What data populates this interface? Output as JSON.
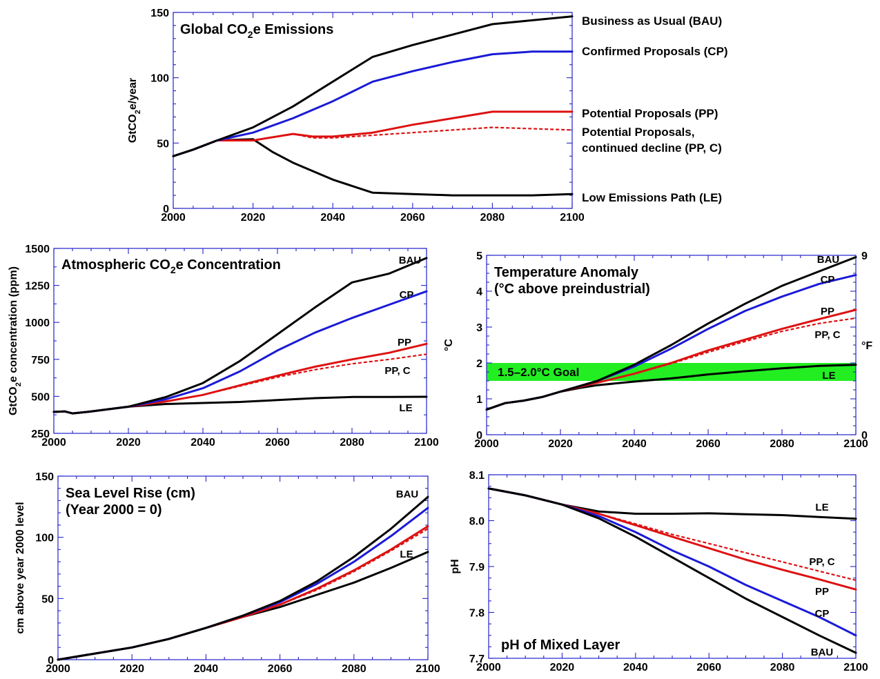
{
  "colors": {
    "bau": "#000000",
    "cp": "#1a1ad6",
    "pp": "#dd1111",
    "ppc": "#dd1111",
    "le": "#000000",
    "frame": "#2222cc",
    "goal_band": "#22ee22"
  },
  "chart_data": [
    {
      "id": "emissions",
      "type": "line",
      "title": "Global CO",
      "title_sub": "2",
      "title_rest": "e Emissions",
      "ylabel": "GtCO",
      "ylabel_sub": "2",
      "ylabel_rest": "e/year",
      "xlim": [
        2000,
        2100
      ],
      "ylim": [
        0,
        150
      ],
      "xticks": [
        "2000",
        "2020",
        "2040",
        "2060",
        "2080",
        "2100"
      ],
      "yticks": [
        "0",
        "50",
        "100",
        "150"
      ],
      "series": [
        {
          "key": "bau",
          "name": "Business as Usual (BAU)",
          "dash": false,
          "x": [
            2000,
            2005,
            2011,
            2020,
            2030,
            2040,
            2050,
            2060,
            2070,
            2080,
            2090,
            2100
          ],
          "y": [
            40,
            45,
            52,
            62,
            78,
            97,
            116,
            125,
            133,
            141,
            144,
            147
          ]
        },
        {
          "key": "cp",
          "name": "Confirmed Proposals (CP)",
          "dash": false,
          "x": [
            2000,
            2005,
            2011,
            2020,
            2030,
            2040,
            2050,
            2060,
            2070,
            2080,
            2090,
            2100
          ],
          "y": [
            40,
            45,
            52,
            58,
            69,
            82,
            97,
            105,
            112,
            118,
            120,
            120
          ]
        },
        {
          "key": "pp",
          "name": "Potential Proposals (PP)",
          "dash": false,
          "x": [
            2000,
            2005,
            2011,
            2020,
            2030,
            2035,
            2040,
            2050,
            2060,
            2070,
            2080,
            2090,
            2100
          ],
          "y": [
            40,
            45,
            52,
            52,
            57,
            55,
            55,
            58,
            64,
            69,
            74,
            74,
            74
          ]
        },
        {
          "key": "ppc",
          "name": "Potential Proposals,",
          "name2": "continued decline (PP, C)",
          "dash": true,
          "x": [
            2000,
            2005,
            2011,
            2020,
            2030,
            2035,
            2040,
            2050,
            2060,
            2070,
            2080,
            2090,
            2100
          ],
          "y": [
            40,
            45,
            52,
            52,
            57,
            54,
            54,
            56,
            58,
            60,
            62,
            61,
            60
          ]
        },
        {
          "key": "le",
          "name": "Low Emissions Path (LE)",
          "dash": false,
          "x": [
            2000,
            2005,
            2011,
            2020,
            2025,
            2030,
            2040,
            2050,
            2060,
            2070,
            2080,
            2090,
            2100
          ],
          "y": [
            40,
            45,
            52,
            53,
            43,
            35,
            22,
            12,
            11,
            10,
            10,
            10,
            11
          ]
        }
      ]
    },
    {
      "id": "concentration",
      "type": "line",
      "title": "Atmospheric CO",
      "title_sub": "2",
      "title_rest": "e Concentration",
      "ylabel": "GtCO",
      "ylabel_sub": "2",
      "ylabel_rest": "e concentration (ppm)",
      "xlim": [
        2000,
        2100
      ],
      "ylim": [
        250,
        1500
      ],
      "xticks": [
        "2000",
        "2020",
        "2040",
        "2060",
        "2080",
        "2100"
      ],
      "yticks": [
        "250",
        "500",
        "750",
        "1000",
        "1250",
        "1500"
      ],
      "series": [
        {
          "key": "bau",
          "name": "BAU",
          "dash": false,
          "x": [
            2000,
            2003,
            2005,
            2010,
            2020,
            2030,
            2040,
            2050,
            2060,
            2070,
            2080,
            2090,
            2100
          ],
          "y": [
            395,
            398,
            385,
            398,
            430,
            495,
            590,
            740,
            920,
            1100,
            1270,
            1330,
            1435
          ]
        },
        {
          "key": "cp",
          "name": "CP",
          "dash": false,
          "x": [
            2000,
            2003,
            2005,
            2010,
            2020,
            2030,
            2040,
            2050,
            2060,
            2070,
            2080,
            2090,
            2100
          ],
          "y": [
            395,
            398,
            385,
            398,
            430,
            480,
            555,
            670,
            810,
            930,
            1030,
            1120,
            1210
          ]
        },
        {
          "key": "pp",
          "name": "PP",
          "dash": false,
          "x": [
            2000,
            2003,
            2005,
            2010,
            2020,
            2030,
            2040,
            2050,
            2060,
            2070,
            2080,
            2090,
            2100
          ],
          "y": [
            395,
            398,
            385,
            398,
            430,
            465,
            510,
            575,
            640,
            700,
            750,
            795,
            855
          ]
        },
        {
          "key": "ppc",
          "name": "PP, C",
          "dash": true,
          "x": [
            2000,
            2003,
            2005,
            2010,
            2020,
            2030,
            2040,
            2050,
            2060,
            2070,
            2080,
            2090,
            2100
          ],
          "y": [
            395,
            398,
            385,
            398,
            430,
            465,
            510,
            570,
            630,
            680,
            720,
            750,
            785
          ]
        },
        {
          "key": "le",
          "name": "LE",
          "dash": false,
          "x": [
            2000,
            2003,
            2005,
            2010,
            2020,
            2030,
            2040,
            2050,
            2060,
            2070,
            2080,
            2090,
            2100
          ],
          "y": [
            395,
            398,
            385,
            398,
            430,
            448,
            455,
            462,
            475,
            488,
            496,
            496,
            497
          ]
        }
      ]
    },
    {
      "id": "temperature",
      "type": "line",
      "title": "Temperature Anomaly",
      "title2": "(°C above preindustrial)",
      "ylabel": "°C",
      "ylabel_right": "°F",
      "band_label": "1.5–2.0°C Goal",
      "band": [
        1.5,
        2.0
      ],
      "xlim": [
        2000,
        2100
      ],
      "ylim": [
        0,
        5
      ],
      "xticks": [
        "2000",
        "2020",
        "2040",
        "2060",
        "2080",
        "2100"
      ],
      "yticks": [
        "0",
        "1",
        "2",
        "3",
        "4",
        "5"
      ],
      "yticks_right": [
        "0",
        "9"
      ],
      "series": [
        {
          "key": "bau",
          "name": "BAU",
          "dash": false,
          "x": [
            2000,
            2005,
            2010,
            2015,
            2020,
            2025,
            2030,
            2040,
            2050,
            2060,
            2070,
            2080,
            2090,
            2100
          ],
          "y": [
            0.7,
            0.88,
            0.95,
            1.05,
            1.2,
            1.35,
            1.5,
            1.95,
            2.5,
            3.1,
            3.65,
            4.15,
            4.55,
            4.95
          ]
        },
        {
          "key": "cp",
          "name": "CP",
          "dash": false,
          "x": [
            2000,
            2005,
            2010,
            2015,
            2020,
            2025,
            2030,
            2040,
            2050,
            2060,
            2070,
            2080,
            2090,
            2100
          ],
          "y": [
            0.7,
            0.88,
            0.95,
            1.05,
            1.2,
            1.35,
            1.5,
            1.9,
            2.4,
            2.95,
            3.45,
            3.85,
            4.2,
            4.45
          ]
        },
        {
          "key": "pp",
          "name": "PP",
          "dash": false,
          "x": [
            2000,
            2005,
            2010,
            2015,
            2020,
            2025,
            2030,
            2040,
            2050,
            2060,
            2070,
            2080,
            2090,
            2100
          ],
          "y": [
            0.7,
            0.88,
            0.95,
            1.05,
            1.2,
            1.33,
            1.45,
            1.7,
            2.0,
            2.35,
            2.65,
            2.95,
            3.22,
            3.48
          ]
        },
        {
          "key": "ppc",
          "name": "PP, C",
          "dash": true,
          "x": [
            2000,
            2005,
            2010,
            2015,
            2020,
            2025,
            2030,
            2040,
            2050,
            2060,
            2070,
            2080,
            2090,
            2100
          ],
          "y": [
            0.7,
            0.88,
            0.95,
            1.05,
            1.2,
            1.33,
            1.45,
            1.7,
            1.98,
            2.3,
            2.6,
            2.88,
            3.1,
            3.25
          ]
        },
        {
          "key": "le",
          "name": "LE",
          "dash": false,
          "x": [
            2000,
            2005,
            2010,
            2015,
            2020,
            2025,
            2030,
            2040,
            2050,
            2060,
            2070,
            2080,
            2090,
            2100
          ],
          "y": [
            0.7,
            0.88,
            0.95,
            1.05,
            1.2,
            1.3,
            1.38,
            1.48,
            1.57,
            1.68,
            1.77,
            1.85,
            1.92,
            1.95
          ]
        }
      ]
    },
    {
      "id": "sealevel",
      "type": "line",
      "title": "Sea Level Rise (cm)",
      "title2": "(Year 2000 = 0)",
      "ylabel": "cm above year 2000 level",
      "xlim": [
        2000,
        2100
      ],
      "ylim": [
        0,
        150
      ],
      "xticks": [
        "2000",
        "2020",
        "2040",
        "2060",
        "2080",
        "2100"
      ],
      "yticks": [
        "0",
        "50",
        "100",
        "150"
      ],
      "series": [
        {
          "key": "bau",
          "name": "BAU",
          "dash": false,
          "x": [
            2000,
            2010,
            2020,
            2030,
            2040,
            2050,
            2060,
            2070,
            2080,
            2090,
            2100
          ],
          "y": [
            0,
            5,
            10,
            17,
            26,
            36,
            48,
            64,
            84,
            107,
            133
          ]
        },
        {
          "key": "cp",
          "name": "CP",
          "dash": false,
          "x": [
            2000,
            2010,
            2020,
            2030,
            2040,
            2050,
            2060,
            2070,
            2080,
            2090,
            2100
          ],
          "y": [
            0,
            5,
            10,
            17,
            26,
            36,
            47,
            62,
            80,
            101,
            124
          ]
        },
        {
          "key": "pp",
          "name": "PP",
          "dash": false,
          "x": [
            2000,
            2010,
            2020,
            2030,
            2040,
            2050,
            2060,
            2070,
            2080,
            2090,
            2100
          ],
          "y": [
            0,
            5,
            10,
            17,
            26,
            35,
            45,
            58,
            73,
            90,
            109
          ]
        },
        {
          "key": "ppc",
          "name": "PP, C",
          "dash": true,
          "x": [
            2000,
            2010,
            2020,
            2030,
            2040,
            2050,
            2060,
            2070,
            2080,
            2090,
            2100
          ],
          "y": [
            0,
            5,
            10,
            17,
            26,
            35,
            45,
            57,
            72,
            89,
            107
          ]
        },
        {
          "key": "le",
          "name": "LE",
          "dash": false,
          "x": [
            2000,
            2010,
            2020,
            2030,
            2040,
            2050,
            2060,
            2070,
            2080,
            2090,
            2100
          ],
          "y": [
            0,
            5,
            10,
            17,
            26,
            35,
            43,
            53,
            63,
            75,
            88
          ]
        }
      ]
    },
    {
      "id": "ph",
      "type": "line",
      "title": "pH of Mixed Layer",
      "ylabel": "pH",
      "xlim": [
        2000,
        2100
      ],
      "ylim": [
        7.7,
        8.1
      ],
      "xticks": [
        "2000",
        "2020",
        "2040",
        "2060",
        "2080",
        "2100"
      ],
      "yticks": [
        "7.7",
        "7.8",
        "7.9",
        "8.0",
        "8.1"
      ],
      "series": [
        {
          "key": "bau",
          "name": "BAU",
          "dash": false,
          "x": [
            2000,
            2010,
            2020,
            2030,
            2040,
            2050,
            2060,
            2070,
            2080,
            2090,
            2100
          ],
          "y": [
            8.07,
            8.055,
            8.035,
            8.005,
            7.965,
            7.92,
            7.875,
            7.83,
            7.79,
            7.75,
            7.712
          ]
        },
        {
          "key": "cp",
          "name": "CP",
          "dash": false,
          "x": [
            2000,
            2010,
            2020,
            2030,
            2040,
            2050,
            2060,
            2070,
            2080,
            2090,
            2100
          ],
          "y": [
            8.07,
            8.055,
            8.035,
            8.01,
            7.975,
            7.935,
            7.9,
            7.86,
            7.825,
            7.79,
            7.75
          ]
        },
        {
          "key": "pp",
          "name": "PP",
          "dash": false,
          "x": [
            2000,
            2010,
            2020,
            2030,
            2040,
            2050,
            2060,
            2070,
            2080,
            2090,
            2100
          ],
          "y": [
            8.07,
            8.055,
            8.035,
            8.015,
            7.99,
            7.965,
            7.94,
            7.915,
            7.893,
            7.872,
            7.85
          ]
        },
        {
          "key": "ppc",
          "name": "PP, C",
          "dash": true,
          "x": [
            2000,
            2010,
            2020,
            2030,
            2040,
            2050,
            2060,
            2070,
            2080,
            2090,
            2100
          ],
          "y": [
            8.07,
            8.055,
            8.035,
            8.015,
            7.993,
            7.97,
            7.95,
            7.93,
            7.91,
            7.89,
            7.87
          ]
        },
        {
          "key": "le",
          "name": "LE",
          "dash": false,
          "x": [
            2000,
            2010,
            2020,
            2030,
            2040,
            2050,
            2060,
            2070,
            2080,
            2090,
            2100
          ],
          "y": [
            8.07,
            8.055,
            8.035,
            8.02,
            8.015,
            8.015,
            8.016,
            8.014,
            8.012,
            8.008,
            8.004
          ]
        }
      ]
    }
  ]
}
